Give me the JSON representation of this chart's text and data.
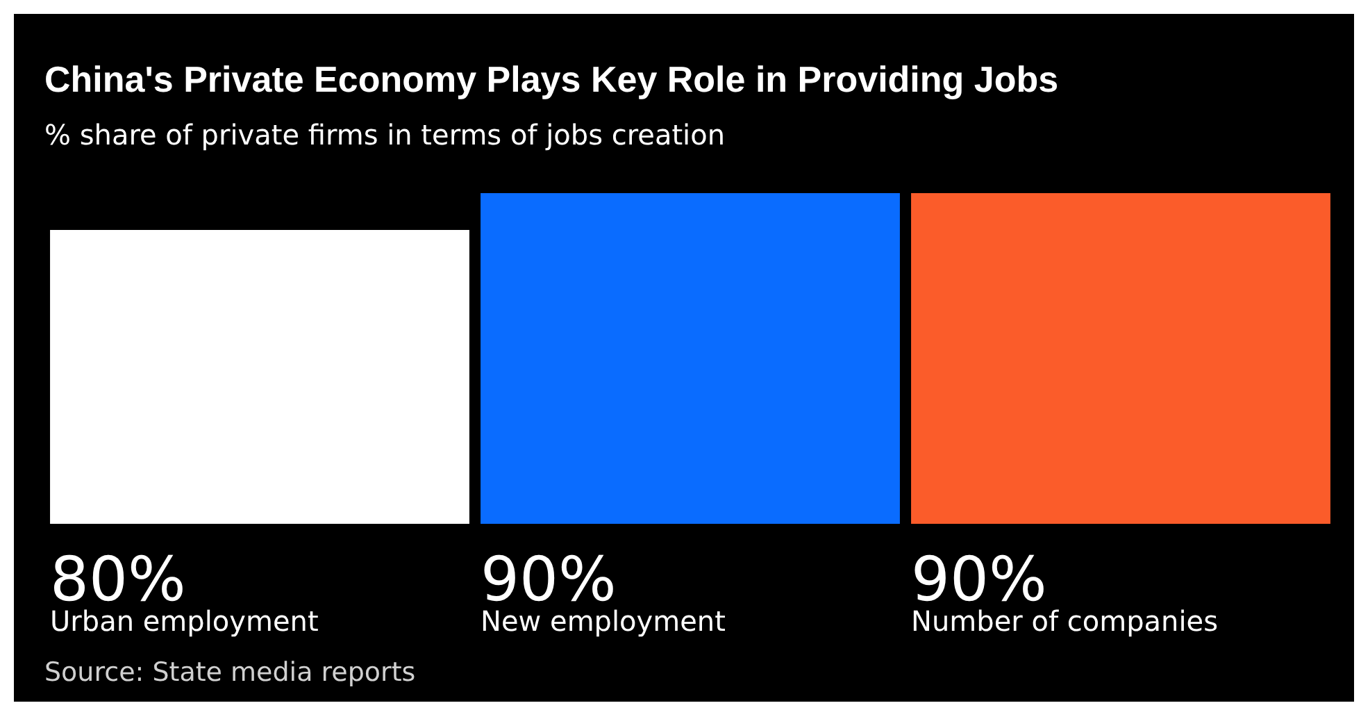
{
  "chart_data": {
    "type": "bar",
    "title": "China's Private Economy Plays Key Role in Providing Jobs",
    "subtitle": "% share of private firms in terms of jobs creation",
    "categories": [
      "Urban employment",
      "New employment",
      "Number of companies"
    ],
    "values": [
      80,
      90,
      90
    ],
    "colors": [
      "#ffffff",
      "#0a6cff",
      "#fb5c2a"
    ],
    "value_labels": [
      "80%",
      "90%",
      "90%"
    ],
    "annotations": [
      "Source: State media reports"
    ]
  }
}
